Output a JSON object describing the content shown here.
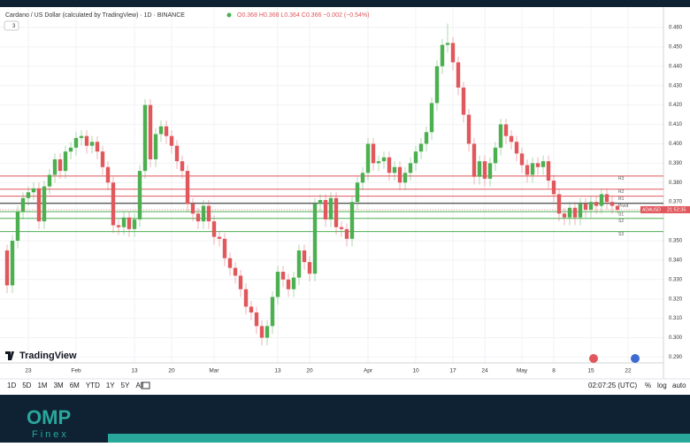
{
  "chart_data": {
    "type": "candlestick",
    "title": "Cardano / US Dollar (calculated by TradingView) · 1D · BINANCE",
    "ohlc_legend": "O0.368 H0.368 L0.364 C0.366 −0.002 (−0.54%)",
    "indicator_count": "3",
    "symbol": "ADAUSD",
    "countdown": "21:52:35",
    "last_price": 0.366,
    "brand": "TradingView",
    "categories": [
      null,
      null,
      null,
      null,
      "23",
      null,
      null,
      null,
      null,
      null,
      null,
      null,
      null,
      "Feb",
      null,
      null,
      null,
      null,
      null,
      null,
      null,
      null,
      null,
      null,
      "13",
      null,
      null,
      null,
      null,
      null,
      null,
      "20",
      null,
      null,
      null,
      null,
      null,
      null,
      null,
      "Mar",
      null,
      null,
      null,
      null,
      null,
      null,
      null,
      null,
      null,
      null,
      null,
      "13",
      null,
      null,
      null,
      null,
      null,
      "20",
      null,
      null,
      null,
      null,
      null,
      null,
      null,
      null,
      null,
      null,
      "Apr",
      null,
      null,
      null,
      null,
      null,
      null,
      null,
      null,
      "10",
      null,
      null,
      null,
      null,
      null,
      null,
      "17",
      null,
      null,
      null,
      null,
      null,
      "24",
      null,
      null,
      null,
      null,
      null,
      null,
      "May",
      null,
      null,
      null,
      null,
      null,
      "8",
      null,
      null,
      null,
      null,
      null,
      null,
      "15",
      null,
      null,
      null,
      null,
      null,
      null,
      "22"
    ],
    "open": [
      0.345,
      0.327,
      0.35,
      0.365,
      0.372,
      0.375,
      0.377,
      0.36,
      0.378,
      0.384,
      0.392,
      0.386,
      0.396,
      0.398,
      0.403,
      0.404,
      0.399,
      0.401,
      0.396,
      0.388,
      0.38,
      0.358,
      0.357,
      0.362,
      0.356,
      0.361,
      0.386,
      0.42,
      0.392,
      0.405,
      0.409,
      0.404,
      0.399,
      0.391,
      0.386,
      0.369,
      0.364,
      0.36,
      0.368,
      0.36,
      0.352,
      0.351,
      0.341,
      0.336,
      0.332,
      0.325,
      0.316,
      0.313,
      0.306,
      0.3,
      0.306,
      0.321,
      0.334,
      0.33,
      0.325,
      0.331,
      0.345,
      0.339,
      0.333,
      0.369,
      0.371,
      0.361,
      0.372,
      0.357,
      0.356,
      0.351,
      0.37,
      0.38,
      0.385,
      0.4,
      0.39,
      0.391,
      0.393,
      0.385,
      0.388,
      0.38,
      0.385,
      0.39,
      0.396,
      0.4,
      0.406,
      0.421,
      0.44,
      0.451,
      0.452,
      0.442,
      0.429,
      0.415,
      0.4,
      0.383,
      0.391,
      0.382,
      0.39,
      0.398,
      0.41,
      0.404,
      0.401,
      0.395,
      0.389,
      0.384,
      0.39,
      0.388,
      0.391,
      0.381,
      0.374,
      0.364,
      0.362,
      0.367,
      0.362,
      0.369,
      0.366,
      0.37,
      0.368,
      0.374,
      0.37,
      0.368,
      null,
      null
    ],
    "high": [
      0.348,
      0.353,
      0.368,
      0.375,
      0.378,
      0.38,
      0.38,
      0.381,
      0.387,
      0.395,
      0.395,
      0.399,
      0.401,
      0.406,
      0.407,
      0.407,
      0.404,
      0.404,
      0.399,
      0.391,
      0.383,
      0.361,
      0.365,
      0.365,
      0.364,
      0.389,
      0.423,
      0.423,
      0.408,
      0.412,
      0.412,
      0.407,
      0.402,
      0.394,
      0.389,
      0.372,
      0.367,
      0.371,
      0.371,
      0.363,
      0.355,
      0.354,
      0.344,
      0.339,
      0.335,
      0.328,
      0.319,
      0.316,
      0.309,
      0.309,
      0.324,
      0.337,
      0.337,
      0.333,
      0.334,
      0.348,
      0.348,
      0.342,
      0.372,
      0.374,
      0.374,
      0.375,
      0.375,
      0.36,
      0.359,
      0.373,
      0.383,
      0.388,
      0.403,
      0.403,
      0.394,
      0.396,
      0.396,
      0.391,
      0.391,
      0.388,
      0.393,
      0.399,
      0.403,
      0.409,
      0.424,
      0.443,
      0.454,
      0.462,
      0.455,
      0.445,
      0.432,
      0.418,
      0.403,
      0.394,
      0.394,
      0.393,
      0.401,
      0.413,
      0.413,
      0.407,
      0.404,
      0.398,
      0.392,
      0.393,
      0.393,
      0.394,
      0.394,
      0.384,
      0.377,
      0.367,
      0.37,
      0.37,
      0.372,
      0.372,
      0.373,
      0.373,
      0.377,
      0.377,
      0.373,
      0.368,
      null,
      null
    ],
    "low": [
      0.323,
      0.323,
      0.346,
      0.361,
      0.368,
      0.371,
      0.356,
      0.356,
      0.374,
      0.38,
      0.382,
      0.382,
      0.392,
      0.394,
      0.399,
      0.395,
      0.395,
      0.392,
      0.384,
      0.376,
      0.354,
      0.353,
      0.353,
      0.352,
      0.352,
      0.357,
      0.382,
      0.388,
      0.388,
      0.401,
      0.4,
      0.395,
      0.387,
      0.382,
      0.365,
      0.36,
      0.356,
      0.356,
      0.356,
      0.348,
      0.347,
      0.337,
      0.332,
      0.328,
      0.321,
      0.312,
      0.309,
      0.302,
      0.296,
      0.296,
      0.302,
      0.317,
      0.326,
      0.321,
      0.321,
      0.327,
      0.335,
      0.329,
      0.329,
      0.365,
      0.357,
      0.357,
      0.353,
      0.352,
      0.347,
      0.347,
      0.366,
      0.376,
      0.381,
      0.386,
      0.386,
      0.387,
      0.381,
      0.381,
      0.376,
      0.376,
      0.381,
      0.386,
      0.392,
      0.396,
      0.402,
      0.417,
      0.436,
      0.447,
      0.438,
      0.425,
      0.411,
      0.396,
      0.379,
      0.379,
      0.378,
      0.378,
      0.386,
      0.394,
      0.4,
      0.397,
      0.391,
      0.385,
      0.38,
      0.38,
      0.384,
      0.384,
      0.377,
      0.37,
      0.36,
      0.358,
      0.358,
      0.358,
      0.358,
      0.362,
      0.362,
      0.364,
      0.364,
      0.366,
      0.364,
      0.364,
      null,
      null
    ],
    "close": [
      0.327,
      0.35,
      0.365,
      0.372,
      0.375,
      0.377,
      0.36,
      0.378,
      0.384,
      0.392,
      0.386,
      0.396,
      0.398,
      0.403,
      0.404,
      0.399,
      0.401,
      0.396,
      0.388,
      0.38,
      0.358,
      0.357,
      0.362,
      0.356,
      0.361,
      0.386,
      0.42,
      0.392,
      0.405,
      0.409,
      0.404,
      0.399,
      0.391,
      0.386,
      0.369,
      0.364,
      0.36,
      0.368,
      0.36,
      0.352,
      0.351,
      0.341,
      0.336,
      0.332,
      0.325,
      0.316,
      0.313,
      0.306,
      0.3,
      0.306,
      0.321,
      0.334,
      0.33,
      0.325,
      0.331,
      0.345,
      0.339,
      0.333,
      0.369,
      0.371,
      0.361,
      0.372,
      0.357,
      0.356,
      0.351,
      0.37,
      0.38,
      0.385,
      0.4,
      0.39,
      0.391,
      0.393,
      0.385,
      0.388,
      0.38,
      0.385,
      0.39,
      0.396,
      0.4,
      0.406,
      0.421,
      0.44,
      0.451,
      0.452,
      0.442,
      0.429,
      0.415,
      0.4,
      0.383,
      0.391,
      0.382,
      0.39,
      0.398,
      0.41,
      0.404,
      0.401,
      0.395,
      0.389,
      0.384,
      0.39,
      0.388,
      0.391,
      0.381,
      0.374,
      0.364,
      0.362,
      0.367,
      0.362,
      0.369,
      0.366,
      0.37,
      0.368,
      0.374,
      0.37,
      0.368,
      0.366,
      null,
      null
    ],
    "up_color": "#4caf50",
    "down_color": "#e0575c",
    "levels": [
      {
        "label": "R3",
        "value": 0.3834,
        "color": "#e0575c"
      },
      {
        "label": "R2",
        "value": 0.3766,
        "color": "#e0575c"
      },
      {
        "label": "R1",
        "value": 0.373,
        "color": "#e0575c"
      },
      {
        "label": "Pivot",
        "value": 0.3693,
        "color": "#222222"
      },
      {
        "label": "S1",
        "value": 0.365,
        "color": "#4caf50"
      },
      {
        "label": "S2",
        "value": 0.3615,
        "color": "#4caf50"
      },
      {
        "label": "S3",
        "value": 0.3547,
        "color": "#4caf50"
      }
    ],
    "ylim": [
      0.287,
      0.4705
    ],
    "yticks": [
      {
        "value": 0.46,
        "label": "0.460"
      },
      {
        "value": 0.45,
        "label": "0.450"
      },
      {
        "value": 0.44,
        "label": "0.440"
      },
      {
        "value": 0.43,
        "label": "0.430"
      },
      {
        "value": 0.42,
        "label": "0.420"
      },
      {
        "value": 0.41,
        "label": "0.410"
      },
      {
        "value": 0.4,
        "label": "0.400"
      },
      {
        "value": 0.39,
        "label": "0.390"
      },
      {
        "value": 0.38,
        "label": "0.380"
      },
      {
        "value": 0.37,
        "label": "0.370"
      },
      {
        "value": 0.35,
        "label": "0.350"
      },
      {
        "value": 0.34,
        "label": "0.340"
      },
      {
        "value": 0.33,
        "label": "0.330"
      },
      {
        "value": 0.32,
        "label": "0.320"
      },
      {
        "value": 0.31,
        "label": "0.310"
      },
      {
        "value": 0.3,
        "label": "0.300"
      },
      {
        "value": 0.29,
        "label": "0.290"
      }
    ],
    "grid": true
  },
  "toolbar": {
    "ranges": [
      "1D",
      "5D",
      "1M",
      "3M",
      "6M",
      "YTD",
      "1Y",
      "5Y",
      "All"
    ],
    "clock": "02:07:25 (UTC)",
    "options": [
      "%",
      "log",
      "auto"
    ]
  },
  "footer": {
    "logo": "OMP",
    "sublogo": "Finex"
  }
}
